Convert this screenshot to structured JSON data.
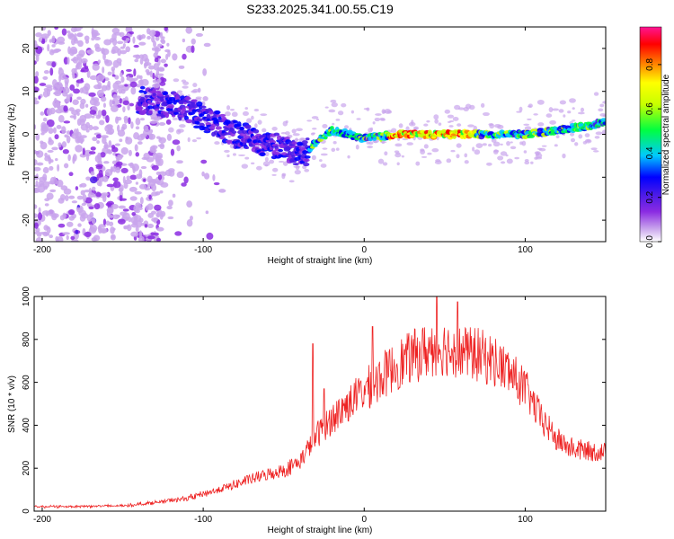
{
  "title": "S233.2025.341.00.55.C19",
  "chart_data": [
    {
      "type": "heatmap",
      "name": "spectrogram",
      "xlabel": "Height of straight line (km)",
      "ylabel": "Frequency (Hz)",
      "xlim": [
        -205,
        150
      ],
      "ylim": [
        -25,
        25
      ],
      "xticks": [
        -200,
        -100,
        0,
        100
      ],
      "yticks": [
        -20,
        -10,
        0,
        10,
        20
      ],
      "xtick_labels": [
        "-200",
        "-100",
        "0",
        "100"
      ],
      "ytick_labels": [
        "-20",
        "-10",
        "0",
        "10",
        "20"
      ],
      "colorbar": {
        "label": "Normalized spectral amplitude",
        "range": [
          0,
          0.97
        ],
        "ticks": [
          0,
          0.2,
          0.4,
          0.6,
          0.8
        ],
        "tick_labels": [
          "0.0",
          "0.2",
          "0.4",
          "0.6",
          "0.8"
        ],
        "colors": [
          "#ffffff",
          "#c9a5ec",
          "#8b2be2",
          "#4a1ae8",
          "#0000ff",
          "#00c8ff",
          "#00ff40",
          "#c8ff00",
          "#ffff00",
          "#ff8000",
          "#ff0000",
          "#ff1493"
        ]
      },
      "ridge": {
        "x": [
          -140,
          -120,
          -100,
          -80,
          -60,
          -45,
          -38,
          -30,
          -20,
          -10,
          0,
          20,
          40,
          60,
          80,
          100,
          120,
          140,
          150
        ],
        "freq": [
          8,
          7,
          4,
          0,
          -2,
          -4,
          -5,
          -2,
          1,
          0,
          -1,
          0,
          0,
          0,
          0,
          0,
          1,
          2,
          3
        ]
      }
    },
    {
      "type": "line",
      "name": "snr",
      "xlabel": "Height of straight line (km)",
      "ylabel": "SNR (10 * v/v)",
      "xlim": [
        -205,
        150
      ],
      "ylim": [
        0,
        1000
      ],
      "xticks": [
        -200,
        -100,
        0,
        100
      ],
      "yticks": [
        0,
        200,
        400,
        600,
        800,
        1000
      ],
      "xtick_labels": [
        "-200",
        "-100",
        "0",
        "100"
      ],
      "ytick_labels": [
        "0",
        "200",
        "400",
        "600",
        "800",
        "1000"
      ],
      "color": "#ee2222",
      "envelope": {
        "x": [
          -205,
          -150,
          -130,
          -110,
          -90,
          -70,
          -60,
          -50,
          -40,
          -35,
          -30,
          -25,
          -20,
          -10,
          0,
          10,
          20,
          30,
          40,
          50,
          60,
          70,
          80,
          90,
          100,
          110,
          120,
          130,
          140,
          150
        ],
        "y": [
          20,
          25,
          40,
          60,
          100,
          150,
          170,
          190,
          230,
          290,
          350,
          390,
          430,
          500,
          560,
          620,
          680,
          720,
          750,
          760,
          740,
          730,
          700,
          650,
          570,
          430,
          330,
          290,
          280,
          275
        ]
      },
      "spikes": [
        {
          "x": -32,
          "y": 780
        },
        {
          "x": -25,
          "y": 570
        },
        {
          "x": 5,
          "y": 860
        },
        {
          "x": 45,
          "y": 1000
        },
        {
          "x": 58,
          "y": 975
        }
      ]
    }
  ]
}
